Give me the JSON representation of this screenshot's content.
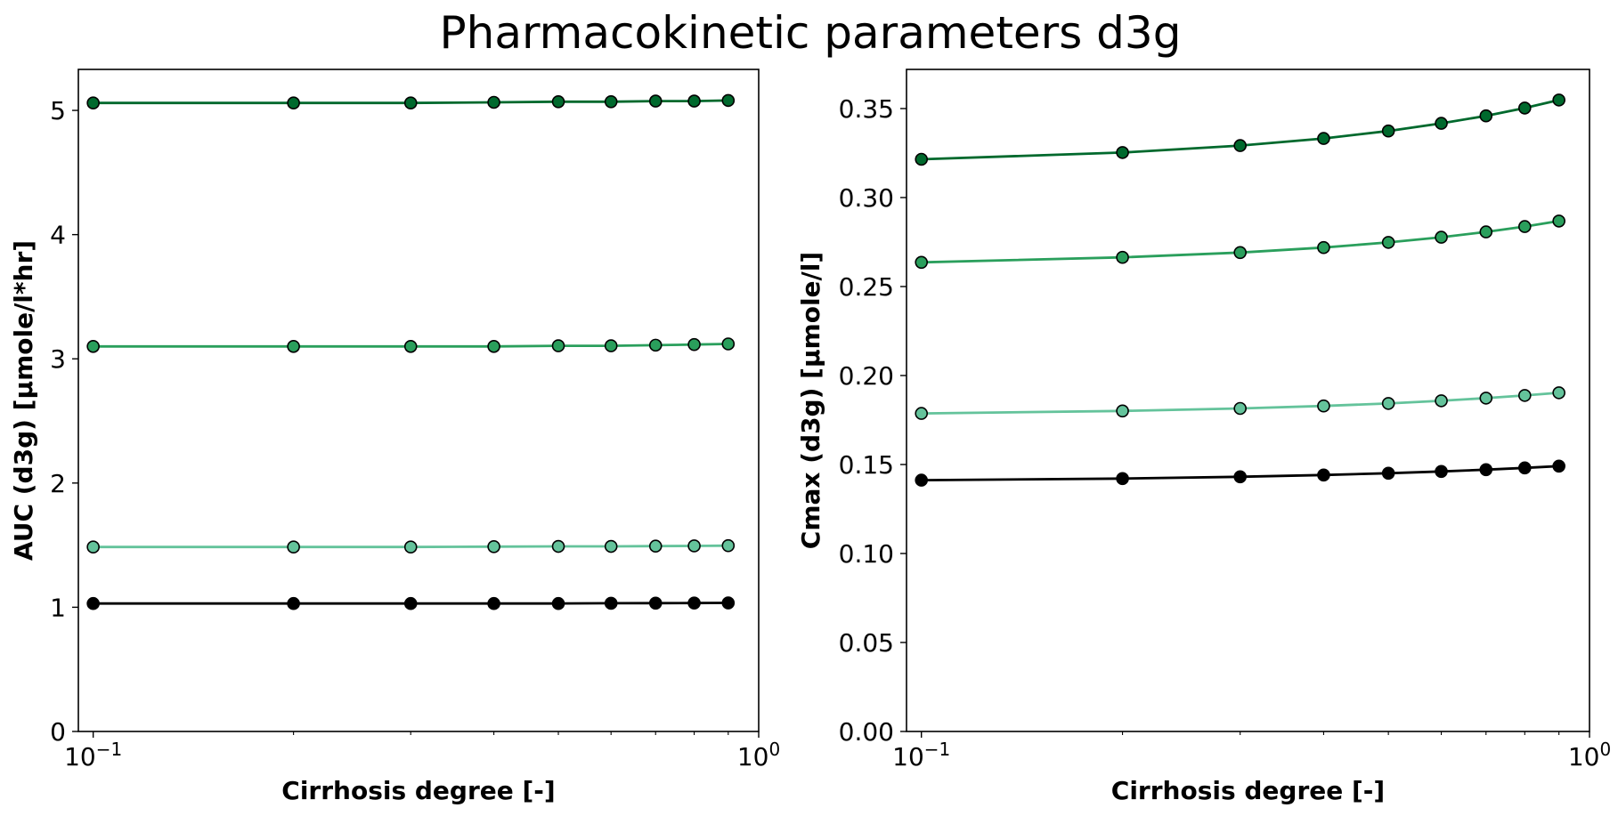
{
  "title": "Pharmacokinetic parameters d3g",
  "colors": {
    "series": [
      "#00692d",
      "#2a9f5c",
      "#64c39b",
      "#000000"
    ]
  },
  "chart_data": [
    {
      "type": "line",
      "xlabel": "Cirrhosis degree [-]",
      "ylabel": "AUC (d3g) [µmole/l*hr]",
      "xscale": "log",
      "xlim": [
        0.095,
        1.0
      ],
      "ylim": [
        0,
        5.33
      ],
      "xticks": [
        {
          "value": 0.1,
          "base": "10",
          "exp": "−1"
        },
        {
          "value": 1,
          "base": "10",
          "exp": "0"
        }
      ],
      "yticks": [
        {
          "value": 0,
          "label": "0"
        },
        {
          "value": 1,
          "label": "1"
        },
        {
          "value": 2,
          "label": "2"
        },
        {
          "value": 3,
          "label": "3"
        },
        {
          "value": 4,
          "label": "4"
        },
        {
          "value": 5,
          "label": "5"
        }
      ],
      "grid": false,
      "x": [
        0.1,
        0.2,
        0.3,
        0.4,
        0.5,
        0.6,
        0.7,
        0.8,
        0.9
      ],
      "series": [
        {
          "color": "#00692d",
          "values": [
            5.06,
            5.06,
            5.06,
            5.065,
            5.07,
            5.07,
            5.075,
            5.075,
            5.08
          ]
        },
        {
          "color": "#2a9f5c",
          "values": [
            3.1,
            3.1,
            3.1,
            3.1,
            3.105,
            3.105,
            3.11,
            3.115,
            3.12
          ]
        },
        {
          "color": "#64c39b",
          "values": [
            1.485,
            1.485,
            1.485,
            1.488,
            1.49,
            1.49,
            1.492,
            1.494,
            1.496
          ]
        },
        {
          "color": "#000000",
          "values": [
            1.03,
            1.03,
            1.03,
            1.03,
            1.03,
            1.032,
            1.033,
            1.034,
            1.035
          ]
        }
      ]
    },
    {
      "type": "line",
      "xlabel": "Cirrhosis degree [-]",
      "ylabel": "Cmax (d3g) [µmole/l]",
      "xscale": "log",
      "xlim": [
        0.095,
        1.0
      ],
      "ylim": [
        0,
        0.372
      ],
      "xticks": [
        {
          "value": 0.1,
          "base": "10",
          "exp": "−1"
        },
        {
          "value": 1,
          "base": "10",
          "exp": "0"
        }
      ],
      "yticks": [
        {
          "value": 0,
          "label": "0.00"
        },
        {
          "value": 0.05,
          "label": "0.05"
        },
        {
          "value": 0.1,
          "label": "0.10"
        },
        {
          "value": 0.15,
          "label": "0.15"
        },
        {
          "value": 0.2,
          "label": "0.20"
        },
        {
          "value": 0.25,
          "label": "0.25"
        },
        {
          "value": 0.3,
          "label": "0.30"
        },
        {
          "value": 0.35,
          "label": "0.35"
        }
      ],
      "grid": false,
      "x": [
        0.1,
        0.2,
        0.3,
        0.4,
        0.5,
        0.6,
        0.7,
        0.8,
        0.9
      ],
      "series": [
        {
          "color": "#00692d",
          "values": [
            0.3215,
            0.3253,
            0.3292,
            0.3332,
            0.3374,
            0.3417,
            0.3459,
            0.3503,
            0.3548
          ]
        },
        {
          "color": "#2a9f5c",
          "values": [
            0.2636,
            0.2664,
            0.2691,
            0.2719,
            0.2748,
            0.2777,
            0.2807,
            0.2837,
            0.2868
          ]
        },
        {
          "color": "#64c39b",
          "values": [
            0.1787,
            0.1801,
            0.1815,
            0.1829,
            0.1843,
            0.1858,
            0.1873,
            0.1888,
            0.1903
          ]
        },
        {
          "color": "#000000",
          "values": [
            0.1412,
            0.1421,
            0.1431,
            0.1441,
            0.1451,
            0.1461,
            0.1471,
            0.1481,
            0.1491
          ]
        }
      ]
    }
  ]
}
